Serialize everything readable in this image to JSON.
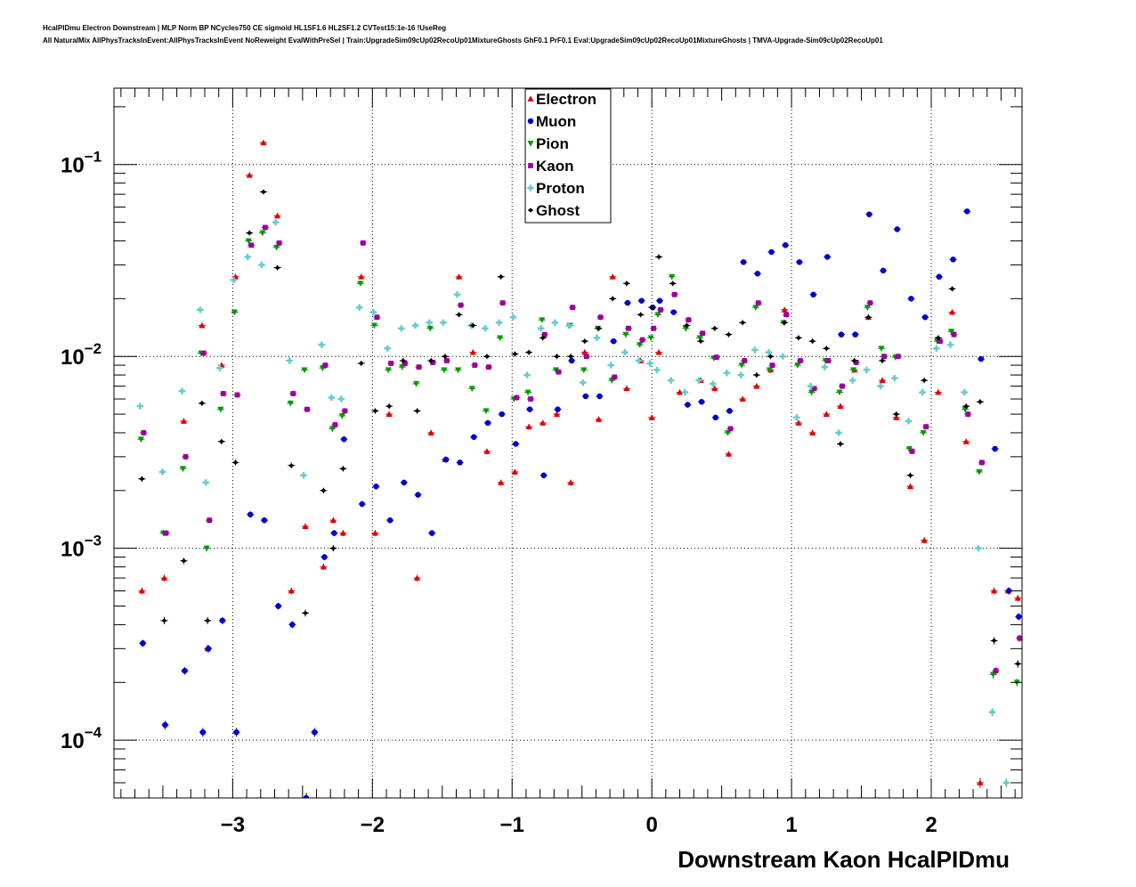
{
  "chart_data": {
    "type": "scatter",
    "title": "HcalPIDmu Electron Downstream | MLP Norm BP NCycles750 CE sigmoid HL1SF1.6 HL2SF1.2 CVTest15:1e-16 !UseReg",
    "subtitle": "All NaturalMix AllPhysTracksInEvent:AllPhysTracksInEvent NoReweight EvalWithPreSel | Train:UpgradeSim09cUp02RecoUp01MixtureGhosts GhF0.1 PrF0.1 Eval:UpgradeSim09cUp02RecoUp01MixtureGhosts | TMVA-Upgrade-Sim09cUp02RecoUp01",
    "xlabel": "Downstream Kaon HcalPIDmu",
    "ylabel": "",
    "xlim": [
      -3.85,
      2.65
    ],
    "ylim": [
      5e-05,
      0.25
    ],
    "y_scale": "log",
    "grid": true,
    "legend_position": "top-center",
    "x_ticks": [
      -3,
      -2,
      -1,
      0,
      1,
      2
    ],
    "x_tick_labels": [
      "−3",
      "−2",
      "−1",
      "0",
      "1",
      "2"
    ],
    "y_ticks": [
      0.0001,
      0.001,
      0.01,
      0.1
    ],
    "y_tick_labels": [
      {
        "base": "10",
        "exp": "−4"
      },
      {
        "base": "10",
        "exp": "−3"
      },
      {
        "base": "10",
        "exp": "−2"
      },
      {
        "base": "10",
        "exp": "−1"
      }
    ],
    "series": [
      {
        "name": "Electron",
        "color": "#dd0000",
        "marker": "triangle-up",
        "x": [
          -3.65,
          -3.49,
          -3.35,
          -3.22,
          -3.18,
          -3.08,
          -2.98,
          -2.88,
          -2.78,
          -2.68,
          -2.58,
          -2.48,
          -2.35,
          -2.28,
          -2.21,
          -2.08,
          -1.98,
          -1.88,
          -1.68,
          -1.58,
          -1.48,
          -1.38,
          -1.28,
          -1.18,
          -1.08,
          -0.98,
          -0.88,
          -0.78,
          -0.68,
          -0.58,
          -0.48,
          -0.38,
          -0.28,
          -0.18,
          -0.08,
          0.0,
          0.05,
          0.2,
          0.35,
          0.45,
          0.55,
          0.65,
          0.75,
          0.85,
          0.95,
          1.05,
          1.15,
          1.25,
          1.35,
          1.45,
          1.55,
          1.65,
          1.75,
          1.85,
          1.95,
          2.05,
          2.15,
          2.25,
          2.35,
          2.45,
          2.55,
          2.62
        ],
        "y": [
          0.0006,
          0.0007,
          0.0046,
          0.0145,
          0.0003,
          0.009,
          0.026,
          0.088,
          0.13,
          0.054,
          0.0006,
          0.0013,
          0.0008,
          0.0014,
          0.0012,
          0.026,
          0.0012,
          0.005,
          0.0007,
          0.004,
          0.0029,
          0.026,
          0.0105,
          0.0032,
          0.0022,
          0.0025,
          0.0043,
          0.0045,
          0.005,
          0.0022,
          0.0105,
          0.0047,
          0.026,
          0.0068,
          0.0095,
          0.0048,
          0.0105,
          0.0065,
          0.0075,
          0.0068,
          0.0031,
          0.006,
          0.007,
          0.0085,
          0.0175,
          0.0045,
          0.004,
          0.005,
          0.0055,
          0.0085,
          0.016,
          0.0075,
          0.0048,
          0.0021,
          0.0011,
          0.0065,
          0.017,
          0.0036,
          6e-05,
          0.0006,
          0.0006,
          0.00055
        ]
      },
      {
        "name": "Muon",
        "color": "#0000cc",
        "marker": "circle",
        "x": [
          -3.65,
          -3.49,
          -3.35,
          -3.22,
          -3.18,
          -3.08,
          -2.98,
          -2.88,
          -2.78,
          -2.68,
          -2.58,
          -2.48,
          -2.42,
          -2.35,
          -2.28,
          -2.21,
          -2.08,
          -1.98,
          -1.88,
          -1.78,
          -1.68,
          -1.58,
          -1.48,
          -1.38,
          -1.28,
          -1.18,
          -1.08,
          -0.98,
          -0.88,
          -0.78,
          -0.68,
          -0.58,
          -0.48,
          -0.38,
          -0.28,
          -0.18,
          -0.08,
          0.0,
          0.05,
          0.15,
          0.25,
          0.35,
          0.45,
          0.55,
          0.65,
          0.75,
          0.85,
          0.95,
          1.05,
          1.15,
          1.25,
          1.35,
          1.45,
          1.55,
          1.65,
          1.75,
          1.85,
          1.95,
          2.05,
          2.15,
          2.25,
          2.35,
          2.45,
          2.55,
          2.62
        ],
        "y": [
          0.00032,
          0.00012,
          0.00023,
          0.00011,
          0.0003,
          0.00042,
          0.00011,
          0.0015,
          0.0014,
          0.0005,
          0.0004,
          5e-05,
          0.00011,
          0.0009,
          0.0012,
          0.0037,
          0.0017,
          0.0021,
          0.0014,
          0.0022,
          0.0019,
          0.0012,
          0.0029,
          0.0028,
          0.0038,
          0.0045,
          0.005,
          0.0035,
          0.0053,
          0.0024,
          0.0053,
          0.0095,
          0.0062,
          0.0062,
          0.012,
          0.019,
          0.0195,
          0.018,
          0.0195,
          0.017,
          0.0056,
          0.0058,
          0.0048,
          0.0052,
          0.031,
          0.027,
          0.035,
          0.038,
          0.031,
          0.021,
          0.033,
          0.013,
          0.013,
          0.055,
          0.028,
          0.046,
          0.02,
          0.016,
          0.026,
          0.032,
          0.057,
          0.0097,
          0.0033,
          0.0006,
          0.00044
        ]
      },
      {
        "name": "Pion",
        "color": "#009900",
        "marker": "triangle-down",
        "x": [
          -3.65,
          -3.49,
          -3.35,
          -3.22,
          -3.18,
          -3.08,
          -2.98,
          -2.88,
          -2.78,
          -2.68,
          -2.58,
          -2.48,
          -2.35,
          -2.28,
          -2.21,
          -2.08,
          -1.98,
          -1.88,
          -1.78,
          -1.68,
          -1.58,
          -1.48,
          -1.38,
          -1.28,
          -1.18,
          -1.08,
          -0.98,
          -0.88,
          -0.78,
          -0.68,
          -0.58,
          -0.48,
          -0.38,
          -0.28,
          -0.18,
          -0.08,
          0.0,
          0.05,
          0.15,
          0.25,
          0.35,
          0.45,
          0.55,
          0.65,
          0.75,
          0.85,
          0.95,
          1.05,
          1.15,
          1.25,
          1.35,
          1.45,
          1.55,
          1.65,
          1.75,
          1.85,
          1.95,
          2.05,
          2.15,
          2.25,
          2.35,
          2.45,
          2.62
        ],
        "y": [
          0.0037,
          0.0012,
          0.0026,
          0.0104,
          0.001,
          0.0053,
          0.017,
          0.04,
          0.044,
          0.037,
          0.0057,
          0.0085,
          0.0087,
          0.0042,
          0.0049,
          0.024,
          0.0145,
          0.0085,
          0.0088,
          0.0072,
          0.014,
          0.0085,
          0.0085,
          0.0068,
          0.0052,
          0.0125,
          0.006,
          0.0065,
          0.0155,
          0.0085,
          0.0145,
          0.0085,
          0.014,
          0.0075,
          0.013,
          0.0115,
          0.0125,
          0.0165,
          0.026,
          0.014,
          0.0125,
          0.0098,
          0.004,
          0.009,
          0.018,
          0.0085,
          0.015,
          0.009,
          0.0065,
          0.0095,
          0.0065,
          0.0085,
          0.018,
          0.011,
          0.0099,
          0.0033,
          0.004,
          0.012,
          0.0135,
          0.0053,
          0.0025,
          0.00022,
          0.0002
        ]
      },
      {
        "name": "Kaon",
        "color": "#990099",
        "marker": "square",
        "x": [
          -3.65,
          -3.49,
          -3.35,
          -3.22,
          -3.18,
          -3.08,
          -2.98,
          -2.88,
          -2.78,
          -2.68,
          -2.58,
          -2.48,
          -2.35,
          -2.28,
          -2.21,
          -2.08,
          -1.98,
          -1.88,
          -1.78,
          -1.68,
          -1.58,
          -1.48,
          -1.38,
          -1.28,
          -1.18,
          -1.08,
          -0.98,
          -0.88,
          -0.78,
          -0.68,
          -0.58,
          -0.48,
          -0.38,
          -0.28,
          -0.18,
          -0.08,
          0.0,
          0.05,
          0.15,
          0.25,
          0.35,
          0.45,
          0.55,
          0.65,
          0.75,
          0.85,
          0.95,
          1.05,
          1.15,
          1.25,
          1.35,
          1.45,
          1.55,
          1.65,
          1.75,
          1.85,
          1.95,
          2.05,
          2.15,
          2.25,
          2.35,
          2.45,
          2.62
        ],
        "y": [
          0.004,
          0.0012,
          0.003,
          0.0104,
          0.0014,
          0.0064,
          0.0063,
          0.038,
          0.047,
          0.039,
          0.0064,
          0.0053,
          0.009,
          0.0044,
          0.0052,
          0.039,
          0.016,
          0.0092,
          0.0092,
          0.0088,
          0.0093,
          0.0095,
          0.0185,
          0.009,
          0.0088,
          0.019,
          0.0061,
          0.006,
          0.013,
          0.0083,
          0.018,
          0.01,
          0.016,
          0.0078,
          0.014,
          0.0122,
          0.014,
          0.0175,
          0.021,
          0.0155,
          0.0132,
          0.0099,
          0.0042,
          0.0095,
          0.019,
          0.009,
          0.0165,
          0.0095,
          0.0068,
          0.0095,
          0.007,
          0.0093,
          0.019,
          0.01,
          0.01,
          0.0032,
          0.0043,
          0.012,
          0.013,
          0.005,
          0.0028,
          0.00023,
          0.00034
        ]
      },
      {
        "name": "Proton",
        "color": "#66cccc",
        "marker": "cross",
        "x": [
          -3.65,
          -3.49,
          -3.35,
          -3.22,
          -3.18,
          -3.08,
          -2.98,
          -2.88,
          -2.78,
          -2.68,
          -2.58,
          -2.48,
          -2.35,
          -2.28,
          -2.21,
          -2.08,
          -1.98,
          -1.88,
          -1.78,
          -1.68,
          -1.58,
          -1.48,
          -1.38,
          -1.28,
          -1.18,
          -1.08,
          -0.98,
          -0.88,
          -0.78,
          -0.68,
          -0.58,
          -0.48,
          -0.38,
          -0.28,
          -0.18,
          -0.08,
          0.0,
          0.05,
          0.15,
          0.25,
          0.35,
          0.45,
          0.55,
          0.65,
          0.75,
          0.85,
          0.95,
          1.05,
          1.15,
          1.25,
          1.35,
          1.45,
          1.55,
          1.65,
          1.75,
          1.85,
          1.95,
          2.05,
          2.15,
          2.25,
          2.35,
          2.45,
          2.55
        ],
        "y": [
          0.0055,
          0.0025,
          0.0066,
          0.0175,
          0.0022,
          0.0087,
          0.025,
          0.033,
          0.03,
          0.05,
          0.0095,
          0.0024,
          0.0115,
          0.0061,
          0.006,
          0.018,
          0.017,
          0.011,
          0.014,
          0.0145,
          0.015,
          0.015,
          0.021,
          0.0145,
          0.014,
          0.015,
          0.016,
          0.008,
          0.014,
          0.015,
          0.0145,
          0.0073,
          0.0125,
          0.009,
          0.0105,
          0.0095,
          0.0092,
          0.0085,
          0.0075,
          0.0065,
          0.0075,
          0.0072,
          0.0082,
          0.008,
          0.0108,
          0.0105,
          0.01,
          0.0048,
          0.007,
          0.0088,
          0.004,
          0.0075,
          0.0085,
          0.007,
          0.0077,
          0.0046,
          0.0065,
          0.011,
          0.0115,
          0.0065,
          0.001,
          0.00014,
          6e-05
        ]
      },
      {
        "name": "Ghost",
        "color": "#000000",
        "marker": "diamond",
        "x": [
          -3.65,
          -3.49,
          -3.35,
          -3.22,
          -3.18,
          -3.08,
          -2.98,
          -2.88,
          -2.78,
          -2.68,
          -2.58,
          -2.48,
          -2.35,
          -2.28,
          -2.21,
          -2.08,
          -1.98,
          -1.88,
          -1.78,
          -1.68,
          -1.58,
          -1.48,
          -1.38,
          -1.28,
          -1.18,
          -1.08,
          -0.98,
          -0.88,
          -0.78,
          -0.68,
          -0.58,
          -0.48,
          -0.38,
          -0.28,
          -0.18,
          -0.08,
          0.0,
          0.05,
          0.15,
          0.25,
          0.35,
          0.45,
          0.55,
          0.65,
          0.75,
          0.85,
          0.95,
          1.05,
          1.15,
          1.25,
          1.35,
          1.45,
          1.55,
          1.65,
          1.75,
          1.85,
          1.95,
          2.05,
          2.15,
          2.25,
          2.35,
          2.45,
          2.62
        ],
        "y": [
          0.0023,
          0.00042,
          0.00086,
          0.0057,
          0.00042,
          0.0036,
          0.0028,
          0.044,
          0.072,
          0.029,
          0.0027,
          0.00046,
          0.002,
          0.001,
          0.0026,
          0.0092,
          0.0052,
          0.0055,
          0.0095,
          0.0052,
          0.0095,
          0.01,
          0.0165,
          0.0145,
          0.01,
          0.026,
          0.0103,
          0.0105,
          0.0125,
          0.01,
          0.01,
          0.012,
          0.014,
          0.02,
          0.024,
          0.0165,
          0.018,
          0.033,
          0.024,
          0.0145,
          0.012,
          0.014,
          0.013,
          0.015,
          0.008,
          0.01,
          0.015,
          0.0125,
          0.012,
          0.011,
          0.0035,
          0.0095,
          0.016,
          0.0095,
          0.005,
          0.0024,
          0.0075,
          0.0125,
          0.0225,
          0.0055,
          0.0058,
          0.00033,
          0.00025
        ]
      }
    ]
  }
}
